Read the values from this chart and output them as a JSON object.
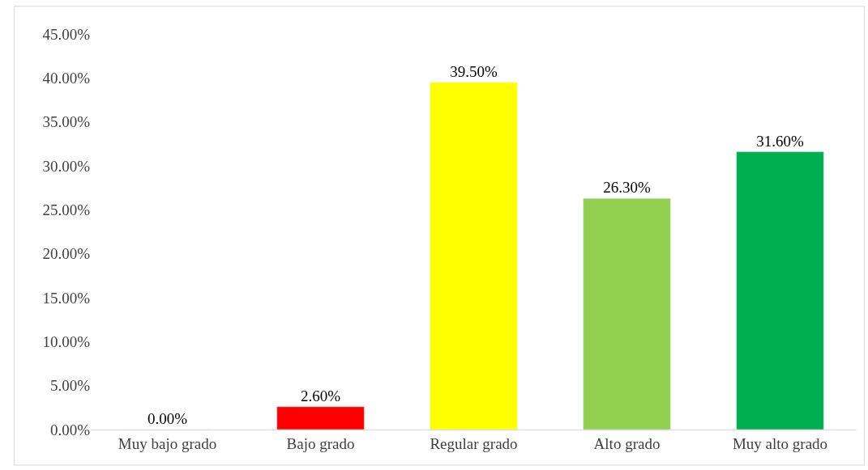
{
  "chart_data": {
    "type": "bar",
    "categories": [
      "Muy bajo grado",
      "Bajo grado",
      "Regular grado",
      "Alto grado",
      "Muy alto grado"
    ],
    "values": [
      0,
      2.6,
      39.5,
      26.3,
      31.6
    ],
    "colors": [
      null,
      "#ff0000",
      "#ffff00",
      "#92d050",
      "#00b050"
    ],
    "value_labels": [
      "0.00%",
      "2.60%",
      "39.50%",
      "26.30%",
      "31.60%"
    ],
    "ylim": [
      0,
      45
    ],
    "yticks": [
      {
        "value": 0,
        "label": "0.00%"
      },
      {
        "value": 5,
        "label": "5.00%"
      },
      {
        "value": 10,
        "label": "10.00%"
      },
      {
        "value": 15,
        "label": "15.00%"
      },
      {
        "value": 20,
        "label": "20.00%"
      },
      {
        "value": 25,
        "label": "25.00%"
      },
      {
        "value": 30,
        "label": "30.00%"
      },
      {
        "value": 35,
        "label": "35.00%"
      },
      {
        "value": 40,
        "label": "40.00%"
      },
      {
        "value": 45,
        "label": "45.00%"
      }
    ],
    "grid": false,
    "legend": false
  }
}
